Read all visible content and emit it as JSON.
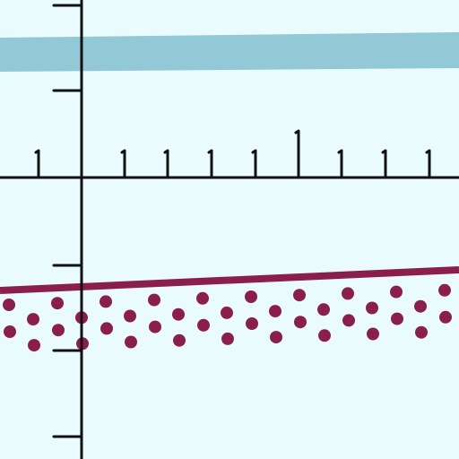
{
  "diagram": {
    "kind": "hand-drawn coordinate plane fragment",
    "colors": {
      "background": "#e9fbfd",
      "axis": "#111111",
      "band": "#93c8d6",
      "line": "#8a1f4d",
      "dots": "#8a1f4d"
    },
    "elements": {
      "vertical_axis": {
        "present": true
      },
      "horizontal_axis": {
        "present": true
      },
      "upper_band": {
        "present": true
      },
      "sloped_line": {
        "present": true
      },
      "dot_strip": {
        "rows": 2
      }
    }
  }
}
